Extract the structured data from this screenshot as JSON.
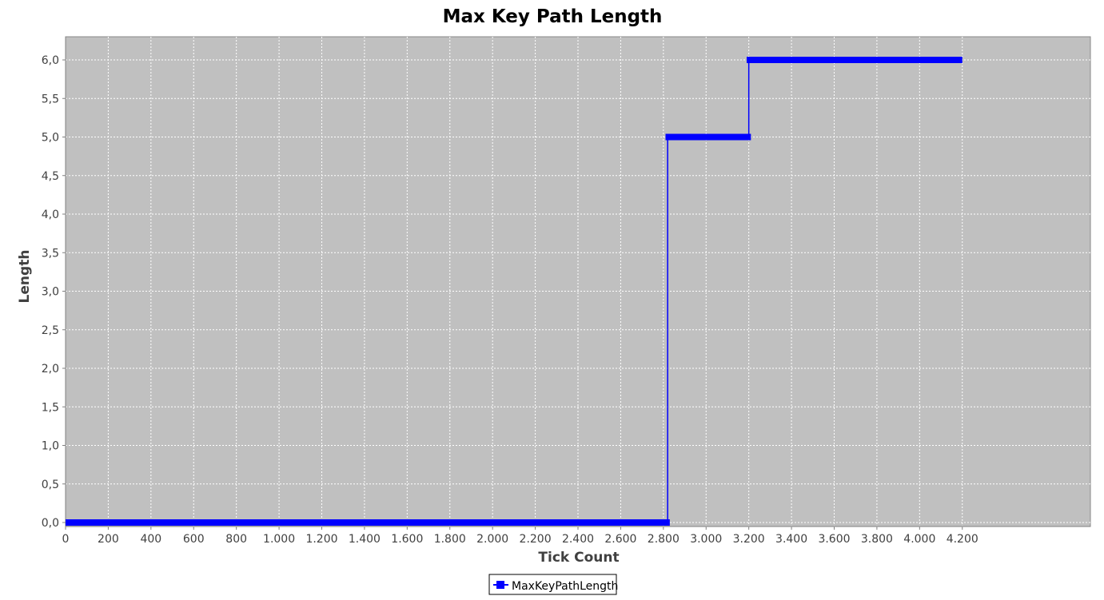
{
  "chart_data": {
    "type": "line",
    "title": "Max Key Path Length",
    "xlabel": "Tick Count",
    "ylabel": "Length",
    "xlim": [
      0,
      4800
    ],
    "ylim": [
      0,
      6.4
    ],
    "x_ticks": [
      0,
      200,
      400,
      600,
      800,
      1000,
      1200,
      1400,
      1600,
      1800,
      2000,
      2200,
      2400,
      2600,
      2800,
      3000,
      3200,
      3400,
      3600,
      3800,
      4000,
      4200
    ],
    "x_tick_labels": [
      "0",
      "200",
      "400",
      "600",
      "800",
      "1.000",
      "1.200",
      "1.400",
      "1.600",
      "1.800",
      "2.000",
      "2.200",
      "2.400",
      "2.600",
      "2.800",
      "3.000",
      "3.200",
      "3.400",
      "3.600",
      "3.800",
      "4.000",
      "4.200"
    ],
    "y_ticks": [
      0,
      0.5,
      1,
      1.5,
      2,
      2.5,
      3,
      3.5,
      4,
      4.5,
      5,
      5.5,
      6
    ],
    "y_tick_labels": [
      "0,0",
      "0,5",
      "1,0",
      "1,5",
      "2,0",
      "2,5",
      "3,0",
      "3,5",
      "4,0",
      "4,5",
      "5,0",
      "5,5",
      "6,0"
    ],
    "grid": true,
    "legend_position": "bottom-center",
    "series": [
      {
        "name": "MaxKeyPathLength",
        "color": "#0000ff",
        "segments": [
          {
            "x_start": 0,
            "x_end": 2830,
            "y": 0
          },
          {
            "x_start": 2810,
            "x_end": 3210,
            "y": 5
          },
          {
            "x_start": 3190,
            "x_end": 4200,
            "y": 6
          }
        ],
        "steps": [
          {
            "x": 2820,
            "from": 0,
            "to": 5
          },
          {
            "x": 3200,
            "from": 5,
            "to": 6
          }
        ]
      }
    ]
  }
}
